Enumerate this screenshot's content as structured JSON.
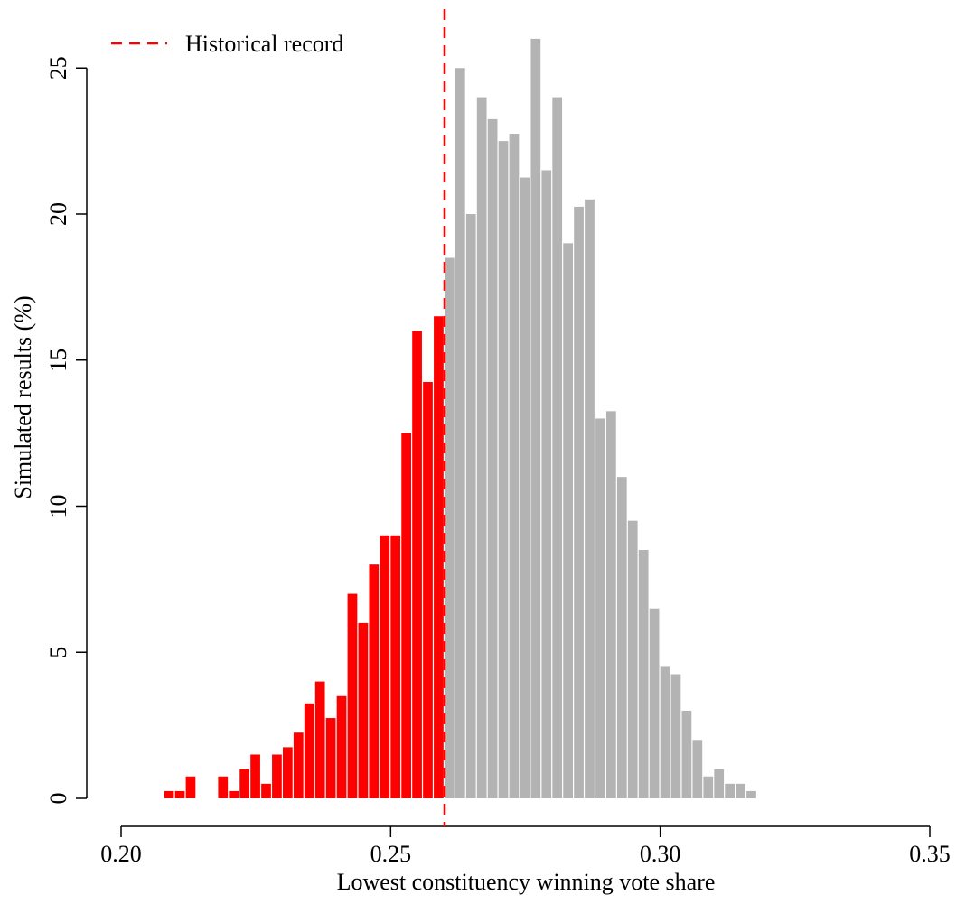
{
  "chart_data": {
    "type": "bar",
    "title": "",
    "xlabel": "Lowest constituency winning vote share",
    "ylabel": "Simulated results (%)",
    "xlim": [
      0.2,
      0.35
    ],
    "ylim": [
      0,
      26
    ],
    "x_ticks": [
      "0.20",
      "0.25",
      "0.30",
      "0.35"
    ],
    "y_ticks": [
      "0",
      "5",
      "10",
      "15",
      "20",
      "25"
    ],
    "bin_width": 0.002,
    "colors": {
      "below_record": "#ff0000",
      "above_record": "#b3b3b3",
      "reference_line": "#ff0000"
    },
    "reference_line": {
      "label": "Historical record",
      "x": 0.26
    },
    "legend_position": "top-left",
    "grid": false,
    "series": [
      {
        "color": "#ff0000",
        "bins": [
          {
            "x": 0.208,
            "y": 0.25
          },
          {
            "x": 0.21,
            "y": 0.25
          },
          {
            "x": 0.212,
            "y": 0.75
          },
          {
            "x": 0.218,
            "y": 0.75
          },
          {
            "x": 0.22,
            "y": 0.25
          },
          {
            "x": 0.222,
            "y": 1.0
          },
          {
            "x": 0.224,
            "y": 1.5
          },
          {
            "x": 0.226,
            "y": 0.5
          },
          {
            "x": 0.228,
            "y": 1.5
          },
          {
            "x": 0.23,
            "y": 1.75
          },
          {
            "x": 0.232,
            "y": 2.25
          },
          {
            "x": 0.234,
            "y": 3.25
          },
          {
            "x": 0.236,
            "y": 4.0
          },
          {
            "x": 0.238,
            "y": 2.75
          },
          {
            "x": 0.24,
            "y": 3.5
          },
          {
            "x": 0.242,
            "y": 7.0
          },
          {
            "x": 0.244,
            "y": 6.0
          },
          {
            "x": 0.246,
            "y": 8.0
          },
          {
            "x": 0.248,
            "y": 9.0
          },
          {
            "x": 0.25,
            "y": 9.0
          },
          {
            "x": 0.252,
            "y": 12.5
          },
          {
            "x": 0.254,
            "y": 16.0
          },
          {
            "x": 0.256,
            "y": 14.25
          },
          {
            "x": 0.258,
            "y": 16.5
          }
        ]
      },
      {
        "color": "#b3b3b3",
        "bins": [
          {
            "x": 0.26,
            "y": 18.5
          },
          {
            "x": 0.262,
            "y": 25.0
          },
          {
            "x": 0.264,
            "y": 20.0
          },
          {
            "x": 0.266,
            "y": 24.0
          },
          {
            "x": 0.268,
            "y": 23.25
          },
          {
            "x": 0.27,
            "y": 22.5
          },
          {
            "x": 0.272,
            "y": 22.75
          },
          {
            "x": 0.274,
            "y": 21.25
          },
          {
            "x": 0.276,
            "y": 26.0
          },
          {
            "x": 0.278,
            "y": 21.5
          },
          {
            "x": 0.28,
            "y": 24.0
          },
          {
            "x": 0.282,
            "y": 19.0
          },
          {
            "x": 0.284,
            "y": 20.25
          },
          {
            "x": 0.286,
            "y": 20.5
          },
          {
            "x": 0.288,
            "y": 13.0
          },
          {
            "x": 0.29,
            "y": 13.25
          },
          {
            "x": 0.292,
            "y": 11.0
          },
          {
            "x": 0.294,
            "y": 9.5
          },
          {
            "x": 0.296,
            "y": 8.5
          },
          {
            "x": 0.298,
            "y": 6.5
          },
          {
            "x": 0.3,
            "y": 4.5
          },
          {
            "x": 0.302,
            "y": 4.25
          },
          {
            "x": 0.304,
            "y": 3.0
          },
          {
            "x": 0.306,
            "y": 2.0
          },
          {
            "x": 0.308,
            "y": 0.75
          },
          {
            "x": 0.31,
            "y": 1.0
          },
          {
            "x": 0.312,
            "y": 0.5
          },
          {
            "x": 0.314,
            "y": 0.5
          },
          {
            "x": 0.316,
            "y": 0.25
          }
        ]
      }
    ]
  }
}
